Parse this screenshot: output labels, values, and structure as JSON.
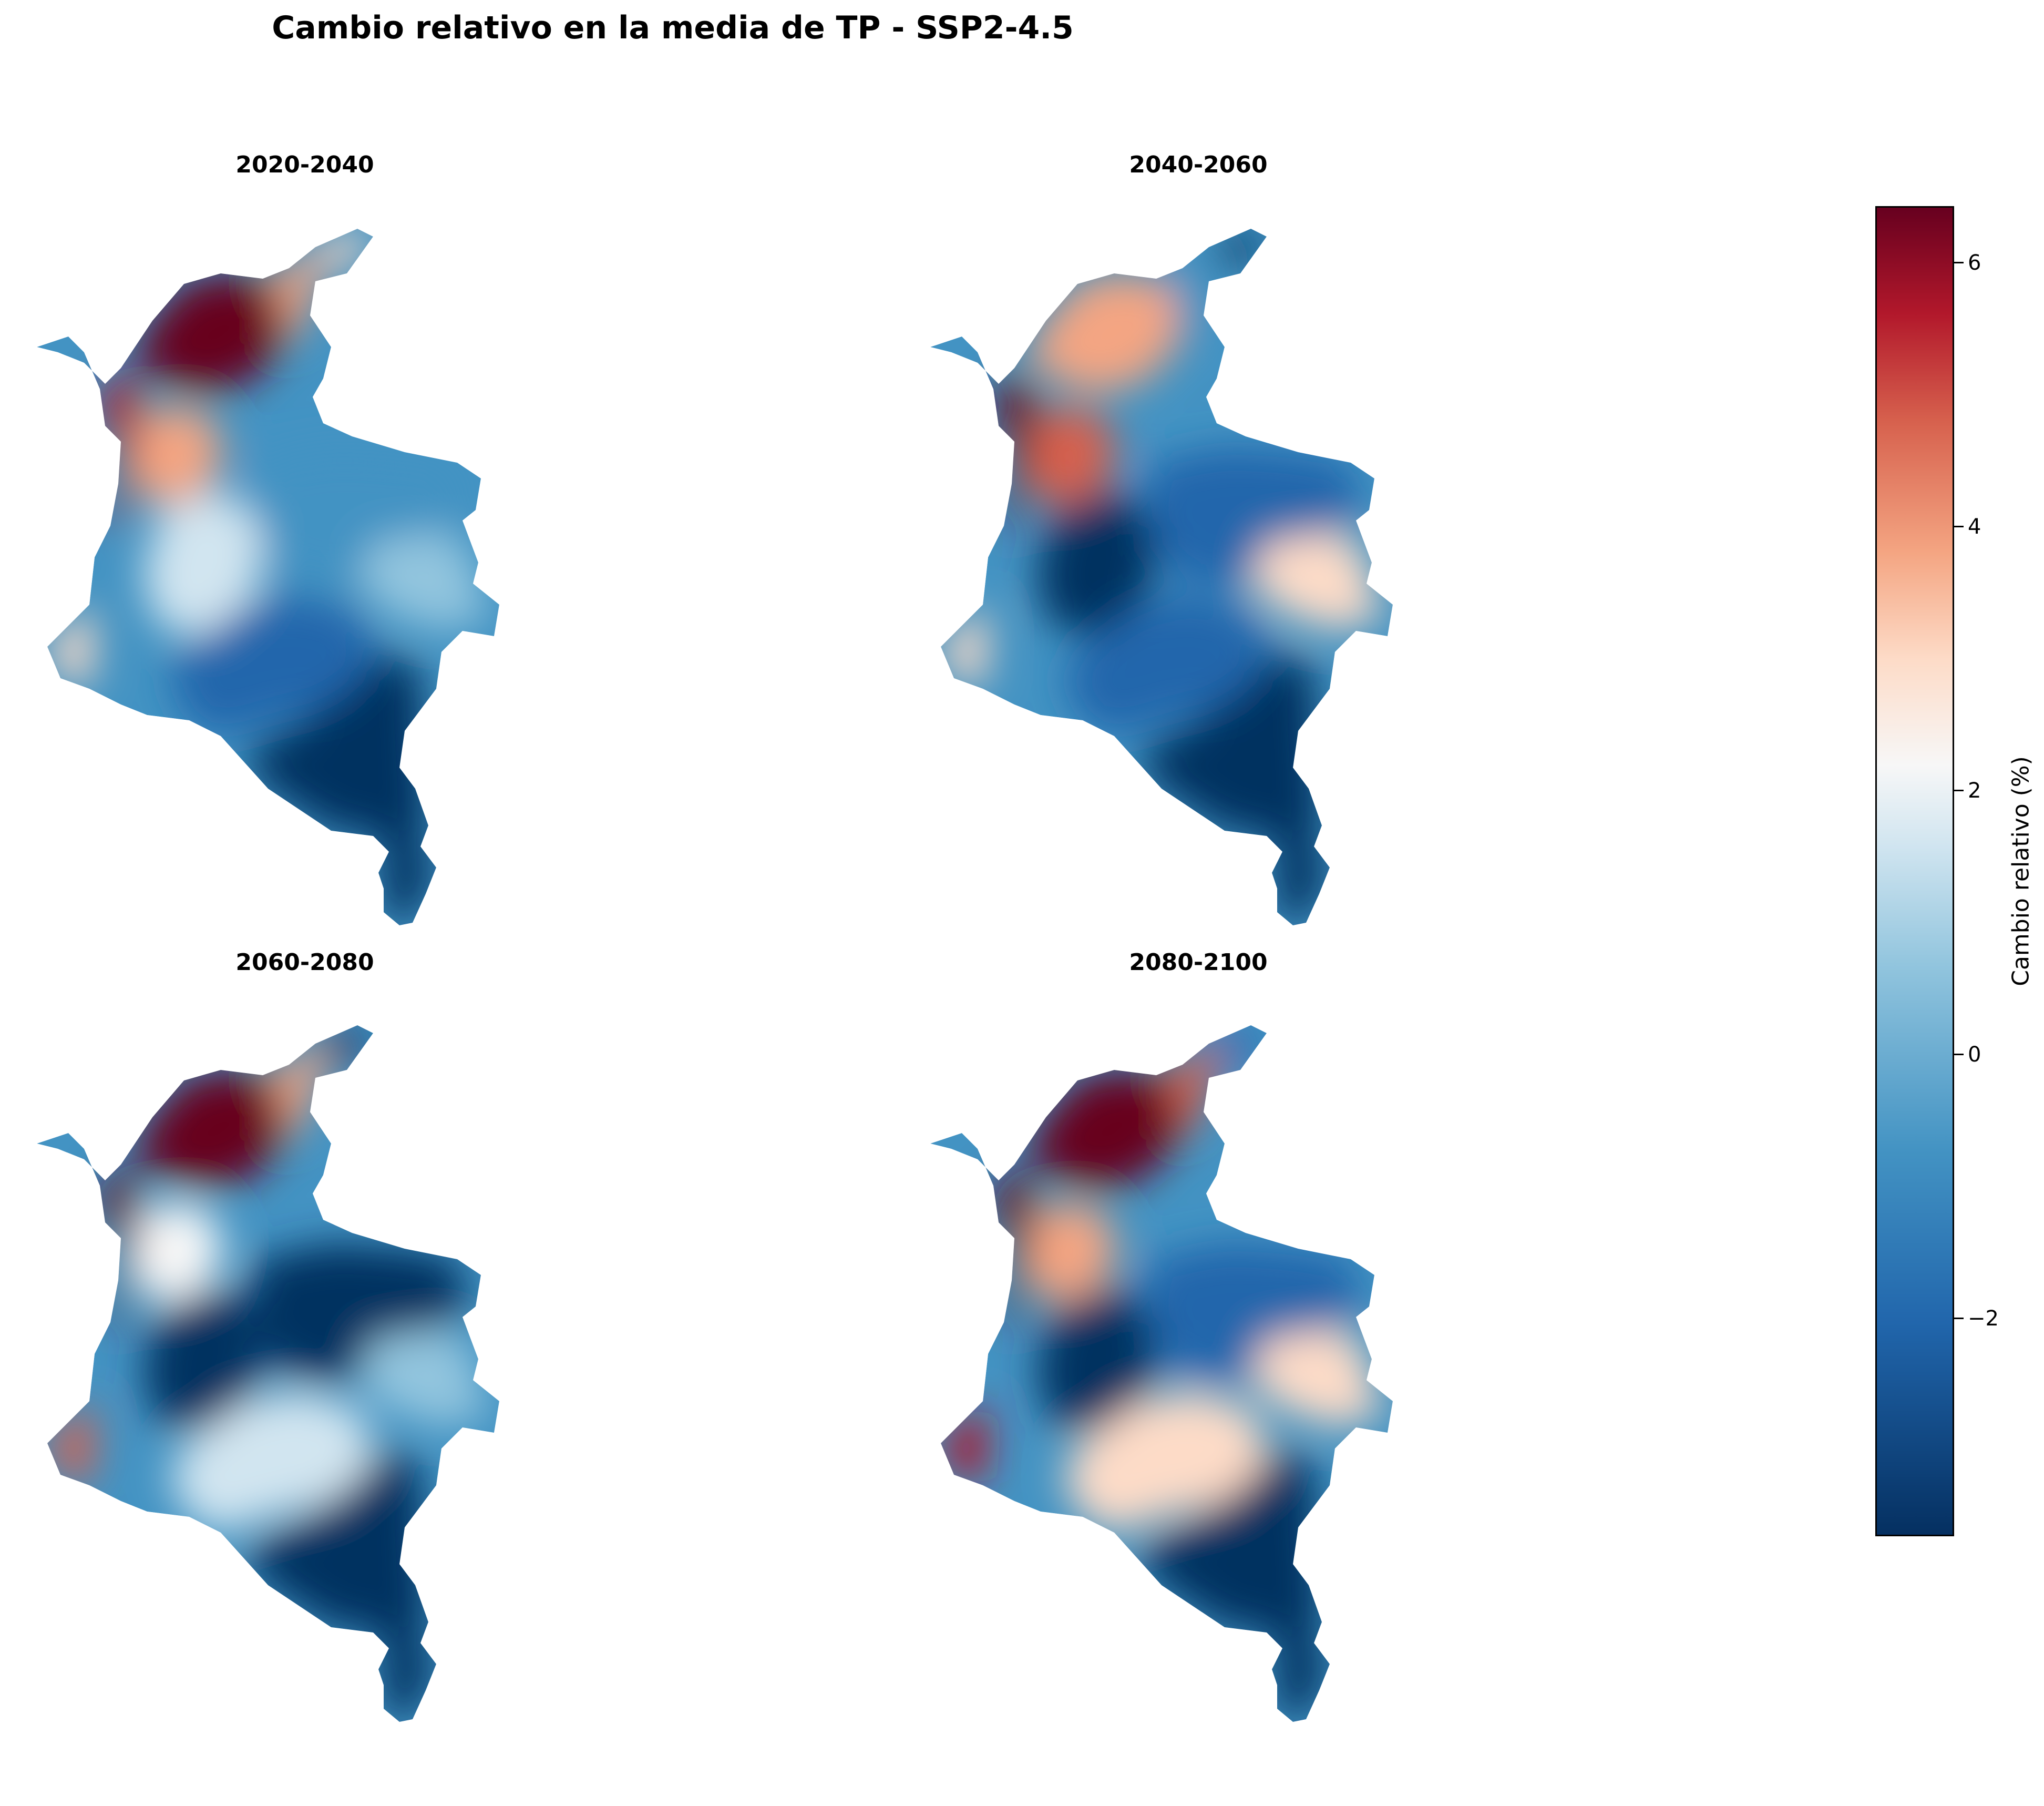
{
  "title": "Cambio relativo en la media de TP - SSP2-4.5",
  "panels": [
    {
      "period": "2020-2040",
      "regions": {
        "caribe": "#67001f",
        "caribe_coast": "#f4a582",
        "guajira": "#fddbc7",
        "pacifico": "#b2182b",
        "andes_w": "#f4a582",
        "andes_c": "#d1e5f0",
        "orinoquia": "#4393c3",
        "llanos_e": "#92c5de",
        "sur_w": "#2166ac",
        "amazonia": "#053061",
        "narino": "#fddbc7"
      }
    },
    {
      "period": "2040-2060",
      "regions": {
        "caribe": "#f4a582",
        "caribe_coast": "#4393c3",
        "guajira": "#053061",
        "pacifico": "#67001f",
        "andes_w": "#d6604d",
        "andes_c": "#053061",
        "orinoquia": "#2166ac",
        "llanos_e": "#fddbc7",
        "sur_w": "#2166ac",
        "amazonia": "#053061",
        "narino": "#fddbc7"
      }
    },
    {
      "period": "2060-2080",
      "regions": {
        "caribe": "#67001f",
        "caribe_coast": "#f4a582",
        "guajira": "#053061",
        "pacifico": "#67001f",
        "andes_w": "#f7f7f7",
        "andes_c": "#053061",
        "orinoquia": "#053061",
        "llanos_e": "#92c5de",
        "sur_w": "#d1e5f0",
        "amazonia": "#053061",
        "narino": "#d6604d"
      }
    },
    {
      "period": "2080-2100",
      "regions": {
        "caribe": "#67001f",
        "caribe_coast": "#d6604d",
        "guajira": "#2166ac",
        "pacifico": "#67001f",
        "andes_w": "#f4a582",
        "andes_c": "#053061",
        "orinoquia": "#2166ac",
        "llanos_e": "#fddbc7",
        "sur_w": "#fddbc7",
        "amazonia": "#053061",
        "narino": "#b2182b"
      }
    }
  ],
  "colorbar": {
    "label": "Cambio relativo (%)",
    "ticks": [
      "6",
      "4",
      "2",
      "0",
      "−2"
    ],
    "colormap": "RdBu_r"
  }
}
